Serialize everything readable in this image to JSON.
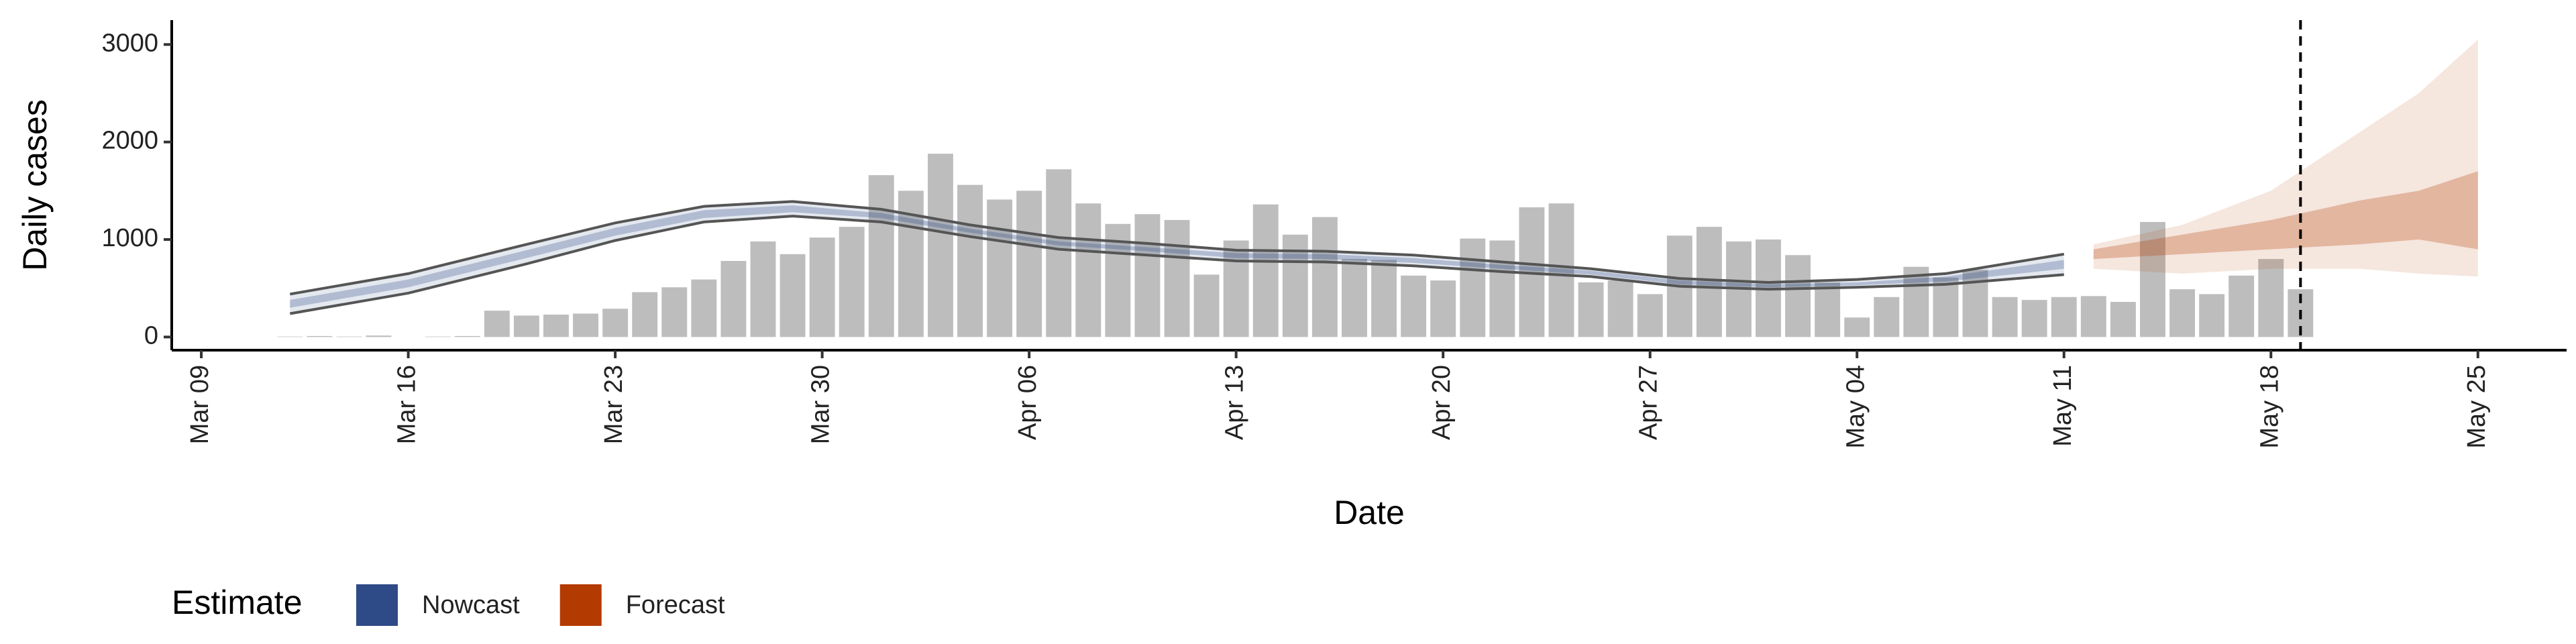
{
  "chart_data": {
    "type": "bar",
    "x_label": "Date",
    "y_label": "Daily cases",
    "x": [
      "Mar 12",
      "Mar 13",
      "Mar 14",
      "Mar 15",
      "Mar 16",
      "Mar 17",
      "Mar 18",
      "Mar 19",
      "Mar 20",
      "Mar 21",
      "Mar 22",
      "Mar 23",
      "Mar 24",
      "Mar 25",
      "Mar 26",
      "Mar 27",
      "Mar 28",
      "Mar 29",
      "Mar 30",
      "Mar 31",
      "Apr 01",
      "Apr 02",
      "Apr 03",
      "Apr 04",
      "Apr 05",
      "Apr 06",
      "Apr 07",
      "Apr 08",
      "Apr 09",
      "Apr 10",
      "Apr 11",
      "Apr 12",
      "Apr 13",
      "Apr 14",
      "Apr 15",
      "Apr 16",
      "Apr 17",
      "Apr 18",
      "Apr 19",
      "Apr 20",
      "Apr 21",
      "Apr 22",
      "Apr 23",
      "Apr 24",
      "Apr 25",
      "Apr 26",
      "Apr 27",
      "Apr 28",
      "Apr 29",
      "Apr 30",
      "May 01",
      "May 02",
      "May 03",
      "May 04",
      "May 05",
      "May 06",
      "May 07",
      "May 08",
      "May 09",
      "May 10",
      "May 11",
      "May 12",
      "May 13",
      "May 14",
      "May 15",
      "May 16",
      "May 17",
      "May 18",
      "May 19"
    ],
    "values": [
      5,
      10,
      5,
      15,
      0,
      5,
      10,
      270,
      220,
      230,
      240,
      290,
      460,
      510,
      590,
      780,
      980,
      850,
      1020,
      1130,
      1660,
      1500,
      1880,
      1560,
      1410,
      1500,
      1720,
      1370,
      1160,
      1260,
      1200,
      640,
      990,
      1360,
      1050,
      1230,
      800,
      790,
      630,
      580,
      1010,
      990,
      1330,
      1370,
      560,
      580,
      440,
      1040,
      1130,
      980,
      1000,
      840,
      560,
      200,
      410,
      720,
      610,
      690,
      410,
      380,
      410,
      420,
      360,
      1180,
      490,
      440,
      630,
      800,
      490
    ],
    "color": "#bdbdbd",
    "xlim": [
      "Mar 08",
      "May 28"
    ],
    "xticks": [
      "Mar 09",
      "Mar 16",
      "Mar 23",
      "Mar 30",
      "Apr 06",
      "Apr 13",
      "Apr 20",
      "Apr 27",
      "May 04",
      "May 11",
      "May 18",
      "May 25"
    ],
    "ylim": [
      -135,
      3250
    ],
    "yticks": [
      0,
      1000,
      2000,
      3000
    ],
    "vline": "May 19",
    "legend_title": "Estimate",
    "estimates": [
      {
        "name": "Nowcast",
        "color": "#2f4b87",
        "outline_color": "#555555",
        "x": [
          "Mar 12",
          "Mar 16",
          "Mar 20",
          "Mar 23",
          "Mar 26",
          "Mar 29",
          "Apr 01",
          "Apr 04",
          "Apr 07",
          "Apr 10",
          "Apr 13",
          "Apr 16",
          "Apr 19",
          "Apr 22",
          "Apr 25",
          "Apr 28",
          "May 01",
          "May 04",
          "May 07",
          "May 11"
        ],
        "upper_90": [
          440,
          650,
          950,
          1170,
          1340,
          1390,
          1310,
          1150,
          1020,
          960,
          890,
          880,
          840,
          770,
          700,
          600,
          560,
          590,
          650,
          850
        ],
        "lower_90": [
          240,
          450,
          750,
          990,
          1180,
          1240,
          1180,
          1030,
          900,
          840,
          780,
          770,
          730,
          670,
          620,
          520,
          490,
          510,
          540,
          640
        ],
        "upper_50": [
          380,
          590,
          890,
          1120,
          1300,
          1350,
          1270,
          1110,
          980,
          920,
          860,
          850,
          810,
          740,
          680,
          580,
          540,
          560,
          620,
          790
        ],
        "lower_50": [
          300,
          510,
          810,
          1040,
          1220,
          1280,
          1220,
          1070,
          940,
          880,
          810,
          800,
          760,
          700,
          640,
          540,
          510,
          530,
          570,
          700
        ]
      },
      {
        "name": "Forecast",
        "color": "#b33a00",
        "x": [
          "May 12",
          "May 15",
          "May 18",
          "May 21",
          "May 23",
          "May 25"
        ],
        "upper_90": [
          950,
          1150,
          1500,
          2100,
          2500,
          3050
        ],
        "lower_90": [
          700,
          650,
          700,
          700,
          650,
          620
        ],
        "upper_50": [
          900,
          1050,
          1200,
          1400,
          1500,
          1700
        ],
        "lower_50": [
          800,
          850,
          900,
          950,
          1000,
          900
        ]
      }
    ]
  }
}
